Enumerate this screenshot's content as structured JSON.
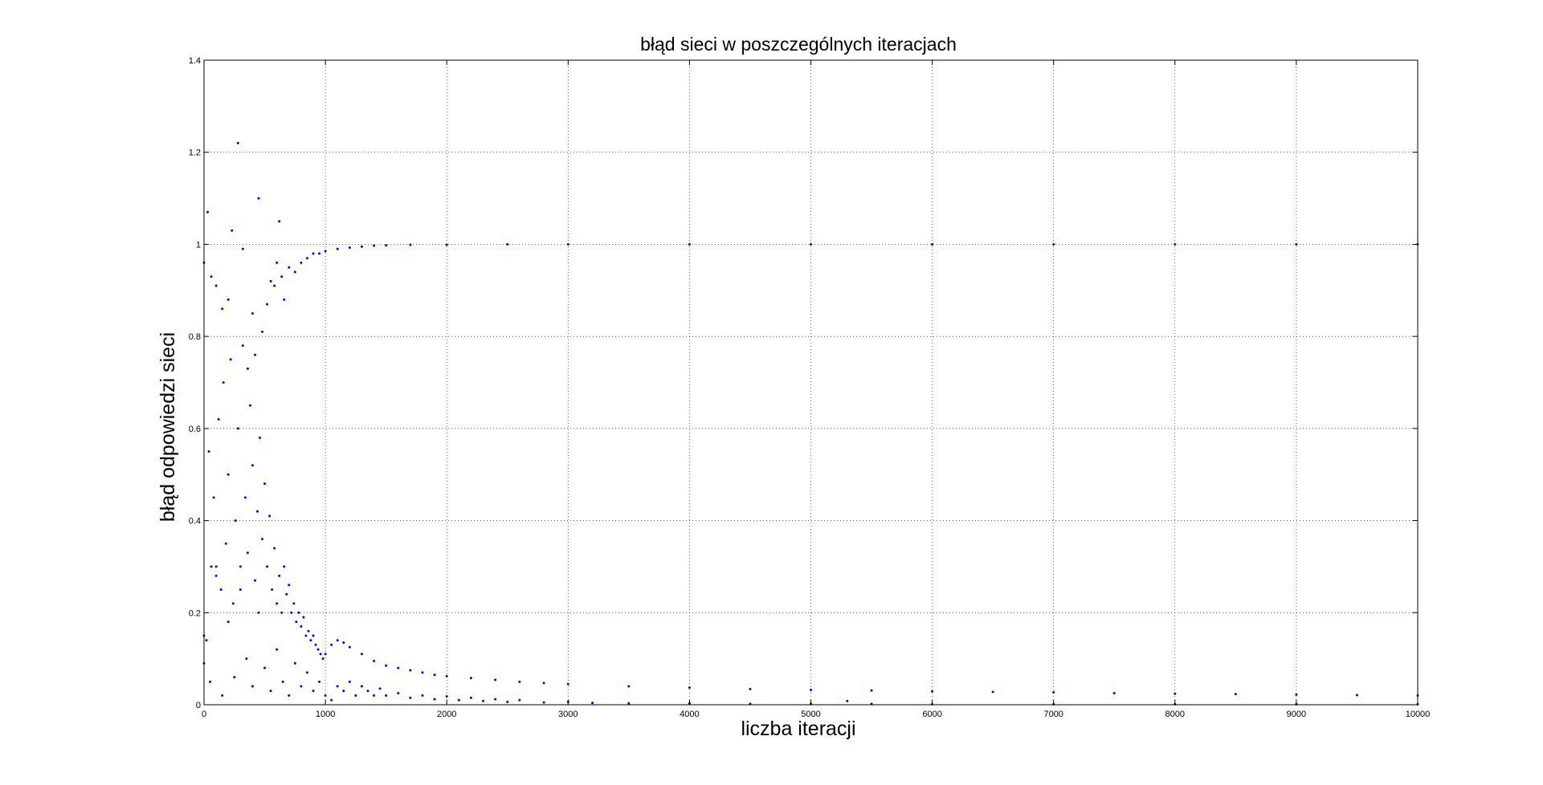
{
  "chart_data": {
    "type": "scatter",
    "title": "błąd sieci w poszczególnych iteracjach",
    "xlabel": "liczba iteracji",
    "ylabel": "błąd odpowiedzi sieci",
    "xlim": [
      0,
      10000
    ],
    "ylim": [
      0,
      1.4
    ],
    "x_ticks": [
      0,
      1000,
      2000,
      3000,
      4000,
      5000,
      6000,
      7000,
      8000,
      9000,
      10000
    ],
    "y_ticks": [
      0,
      0.2,
      0.4,
      0.6,
      0.8,
      1,
      1.2,
      1.4
    ],
    "x_tick_labels": [
      "0",
      "1000",
      "2000",
      "3000",
      "4000",
      "5000",
      "6000",
      "7000",
      "8000",
      "9000",
      "10000"
    ],
    "y_tick_labels": [
      "0",
      "0.2",
      "0.4",
      "0.6",
      "0.8",
      "1",
      "1.2",
      "1.4"
    ],
    "grid": true,
    "marker_color": "#0000ff",
    "series": [
      {
        "points": [
          [
            0,
            0.96
          ],
          [
            30,
            1.07
          ],
          [
            60,
            0.93
          ],
          [
            100,
            0.91
          ],
          [
            150,
            0.86
          ],
          [
            200,
            0.88
          ],
          [
            230,
            1.03
          ],
          [
            280,
            1.22
          ],
          [
            320,
            0.99
          ],
          [
            360,
            0.73
          ],
          [
            400,
            0.85
          ],
          [
            420,
            0.76
          ],
          [
            450,
            1.1
          ],
          [
            480,
            0.81
          ],
          [
            520,
            0.87
          ],
          [
            550,
            0.92
          ],
          [
            580,
            0.91
          ],
          [
            600,
            0.96
          ],
          [
            620,
            1.05
          ],
          [
            640,
            0.93
          ],
          [
            660,
            0.88
          ],
          [
            700,
            0.95
          ],
          [
            750,
            0.94
          ],
          [
            800,
            0.96
          ],
          [
            850,
            0.97
          ],
          [
            900,
            0.98
          ],
          [
            950,
            0.98
          ],
          [
            1000,
            0.985
          ],
          [
            1100,
            0.99
          ],
          [
            1200,
            0.993
          ],
          [
            1300,
            0.995
          ],
          [
            1400,
            0.997
          ],
          [
            1500,
            0.998
          ],
          [
            1700,
            0.999
          ],
          [
            2000,
            0.999
          ],
          [
            2500,
            1.0
          ],
          [
            3000,
            1.0
          ],
          [
            4000,
            1.0
          ],
          [
            5000,
            1.0
          ],
          [
            6000,
            1.0
          ],
          [
            7000,
            1.0
          ],
          [
            8000,
            1.0
          ],
          [
            9000,
            1.0
          ],
          [
            10000,
            1.0
          ]
        ]
      },
      {
        "points": [
          [
            0,
            0.09
          ],
          [
            20,
            0.14
          ],
          [
            40,
            0.55
          ],
          [
            60,
            0.3
          ],
          [
            80,
            0.45
          ],
          [
            100,
            0.28
          ],
          [
            120,
            0.62
          ],
          [
            140,
            0.25
          ],
          [
            160,
            0.7
          ],
          [
            180,
            0.35
          ],
          [
            200,
            0.5
          ],
          [
            220,
            0.75
          ],
          [
            240,
            0.22
          ],
          [
            260,
            0.4
          ],
          [
            280,
            0.6
          ],
          [
            300,
            0.3
          ],
          [
            320,
            0.78
          ],
          [
            340,
            0.45
          ],
          [
            360,
            0.33
          ],
          [
            380,
            0.65
          ],
          [
            400,
            0.52
          ],
          [
            420,
            0.27
          ],
          [
            440,
            0.42
          ],
          [
            460,
            0.58
          ],
          [
            480,
            0.36
          ],
          [
            500,
            0.48
          ],
          [
            520,
            0.3
          ],
          [
            540,
            0.41
          ],
          [
            560,
            0.25
          ],
          [
            580,
            0.34
          ],
          [
            600,
            0.22
          ],
          [
            620,
            0.28
          ],
          [
            640,
            0.2
          ],
          [
            660,
            0.3
          ],
          [
            680,
            0.24
          ],
          [
            700,
            0.26
          ],
          [
            720,
            0.2
          ],
          [
            740,
            0.22
          ],
          [
            760,
            0.18
          ],
          [
            780,
            0.2
          ],
          [
            800,
            0.17
          ],
          [
            820,
            0.19
          ],
          [
            840,
            0.15
          ],
          [
            860,
            0.16
          ],
          [
            880,
            0.14
          ],
          [
            900,
            0.15
          ],
          [
            920,
            0.13
          ],
          [
            940,
            0.12
          ],
          [
            960,
            0.11
          ],
          [
            980,
            0.1
          ],
          [
            1000,
            0.11
          ],
          [
            1050,
            0.13
          ],
          [
            1100,
            0.14
          ],
          [
            1150,
            0.135
          ],
          [
            1200,
            0.125
          ],
          [
            1300,
            0.11
          ],
          [
            1400,
            0.095
          ],
          [
            1500,
            0.085
          ],
          [
            1600,
            0.08
          ],
          [
            1700,
            0.075
          ],
          [
            1800,
            0.07
          ],
          [
            1900,
            0.065
          ],
          [
            2000,
            0.062
          ],
          [
            2200,
            0.058
          ],
          [
            2400,
            0.054
          ],
          [
            2600,
            0.05
          ],
          [
            2800,
            0.047
          ],
          [
            3000,
            0.045
          ],
          [
            3500,
            0.04
          ],
          [
            4000,
            0.037
          ],
          [
            4500,
            0.034
          ],
          [
            5000,
            0.032
          ],
          [
            5500,
            0.031
          ],
          [
            6000,
            0.029
          ],
          [
            6500,
            0.028
          ],
          [
            7000,
            0.027
          ],
          [
            7500,
            0.025
          ],
          [
            8000,
            0.024
          ],
          [
            8500,
            0.023
          ],
          [
            9000,
            0.022
          ],
          [
            9500,
            0.021
          ],
          [
            10000,
            0.02
          ]
        ]
      },
      {
        "points": [
          [
            0,
            0.15
          ],
          [
            50,
            0.05
          ],
          [
            100,
            0.3
          ],
          [
            150,
            0.02
          ],
          [
            200,
            0.18
          ],
          [
            250,
            0.06
          ],
          [
            300,
            0.25
          ],
          [
            350,
            0.1
          ],
          [
            400,
            0.04
          ],
          [
            450,
            0.2
          ],
          [
            500,
            0.08
          ],
          [
            550,
            0.03
          ],
          [
            600,
            0.12
          ],
          [
            650,
            0.05
          ],
          [
            700,
            0.02
          ],
          [
            750,
            0.09
          ],
          [
            800,
            0.04
          ],
          [
            850,
            0.07
          ],
          [
            900,
            0.03
          ],
          [
            950,
            0.05
          ],
          [
            1000,
            0.02
          ],
          [
            1050,
            0.01
          ],
          [
            1100,
            0.04
          ],
          [
            1150,
            0.03
          ],
          [
            1200,
            0.05
          ],
          [
            1250,
            0.02
          ],
          [
            1300,
            0.04
          ],
          [
            1350,
            0.03
          ],
          [
            1400,
            0.02
          ],
          [
            1450,
            0.035
          ],
          [
            1500,
            0.02
          ],
          [
            1600,
            0.025
          ],
          [
            1700,
            0.015
          ],
          [
            1800,
            0.02
          ],
          [
            1900,
            0.012
          ],
          [
            2000,
            0.018
          ],
          [
            2100,
            0.01
          ],
          [
            2200,
            0.015
          ],
          [
            2300,
            0.008
          ],
          [
            2400,
            0.012
          ],
          [
            2500,
            0.006
          ],
          [
            2600,
            0.01
          ],
          [
            2800,
            0.005
          ],
          [
            3000,
            0.006
          ],
          [
            3200,
            0.004
          ],
          [
            3500,
            0.003
          ],
          [
            4000,
            0.003
          ],
          [
            4500,
            0.002
          ],
          [
            5000,
            0.002
          ],
          [
            5300,
            0.008
          ],
          [
            5500,
            0.002
          ],
          [
            6000,
            0.001
          ],
          [
            7000,
            0.001
          ],
          [
            8000,
            0.001
          ],
          [
            9000,
            0.001
          ],
          [
            10000,
            0.001
          ]
        ]
      }
    ]
  }
}
